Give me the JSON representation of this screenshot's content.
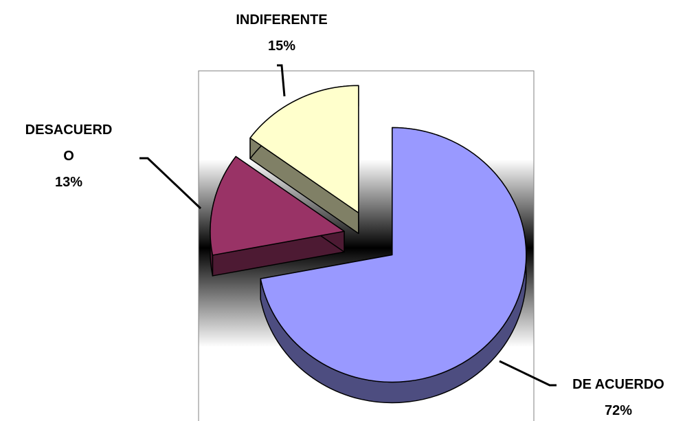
{
  "chart_data": {
    "type": "pie",
    "categories": [
      "DE ACUERDO",
      "DESACUERDO",
      "INDIFERENTE"
    ],
    "values": [
      72,
      13,
      15
    ],
    "value_labels": [
      "72%",
      "13%",
      "15%"
    ],
    "colors": [
      "#9999ff",
      "#993366",
      "#ffffcc"
    ]
  }
}
